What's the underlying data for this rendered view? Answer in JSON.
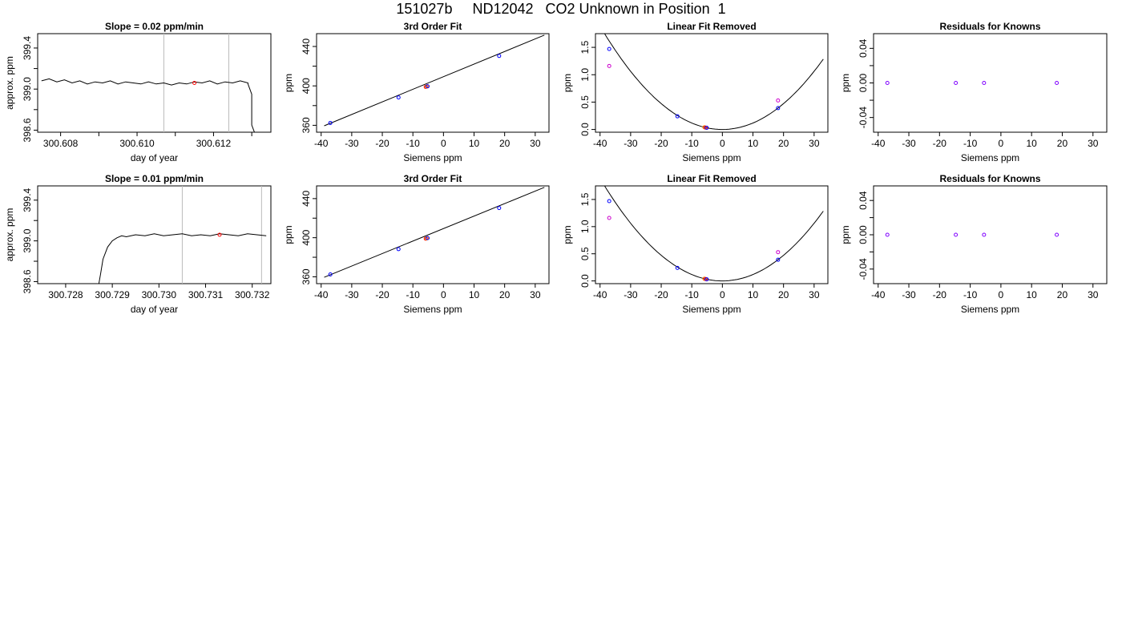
{
  "page": {
    "title": "151027b     ND12042   CO2 Unknown in Position  1"
  },
  "chart_data": [
    {
      "type": "line",
      "title": "Slope =  0.02  ppm/min",
      "xlabel": "day of year",
      "ylabel": "approx. ppm",
      "xlim": [
        300.6074,
        300.6135
      ],
      "ylim": [
        398.58,
        399.54
      ],
      "xticks": [
        300.608,
        300.609,
        300.61,
        300.611,
        300.612,
        300.613
      ],
      "xtick_labels": [
        "300.608",
        "",
        "300.610",
        "",
        "300.612",
        ""
      ],
      "yticks": [
        398.6,
        398.8,
        399.0,
        399.2,
        399.4
      ],
      "ytick_labels": [
        "398.6",
        "",
        "399.0",
        "",
        "399.4"
      ],
      "x": [
        300.6075,
        300.6077,
        300.6079,
        300.6081,
        300.6083,
        300.6085,
        300.6087,
        300.6089,
        300.6091,
        300.6093,
        300.6095,
        300.6097,
        300.6099,
        300.6101,
        300.6103,
        300.6105,
        300.6107,
        300.6109,
        300.6111,
        300.6113,
        300.6115,
        300.6117,
        300.6119,
        300.6121,
        300.6123,
        300.6125,
        300.6127,
        300.6129,
        300.6129,
        300.613,
        300.613,
        300.613,
        300.6131
      ],
      "y": [
        399.08,
        399.1,
        399.07,
        399.09,
        399.06,
        399.08,
        399.05,
        399.07,
        399.06,
        399.08,
        399.05,
        399.07,
        399.06,
        399.05,
        399.07,
        399.05,
        399.06,
        399.04,
        399.06,
        399.05,
        399.07,
        399.06,
        399.08,
        399.05,
        399.07,
        399.06,
        399.08,
        399.06,
        399.05,
        398.95,
        398.8,
        398.65,
        398.55
      ],
      "vlines": [
        300.6107,
        300.6124
      ],
      "points": [
        {
          "x": 300.6115,
          "y": 399.06,
          "color": "#ff0000"
        }
      ]
    },
    {
      "type": "scatter",
      "title": "3rd Order Fit",
      "xlabel": "Siemens ppm",
      "ylabel": "ppm",
      "xlim": [
        -41.5,
        34.5
      ],
      "ylim": [
        353,
        453
      ],
      "xticks": [
        -40,
        -30,
        -20,
        -10,
        0,
        10,
        20,
        30
      ],
      "xtick_labels": [
        "-40",
        "-30",
        "-20",
        "-10",
        "0",
        "10",
        "20",
        "30"
      ],
      "yticks": [
        360,
        380,
        400,
        420,
        440
      ],
      "ytick_labels": [
        "360",
        "",
        "400",
        "",
        "440"
      ],
      "fit_line": [
        [
          -39,
          359.5
        ],
        [
          33,
          451.5
        ]
      ],
      "points": [
        {
          "x": -37,
          "y": 362.4,
          "color": "#0000ff"
        },
        {
          "x": -14.7,
          "y": 388.3,
          "color": "#0000ff"
        },
        {
          "x": -5.8,
          "y": 399.0,
          "color": "#ff0000"
        },
        {
          "x": -5.5,
          "y": 399.3,
          "color": "#ff8000"
        },
        {
          "x": -5.2,
          "y": 399.6,
          "color": "#0000ff"
        },
        {
          "x": 18.2,
          "y": 430.4,
          "color": "#0000ff"
        }
      ]
    },
    {
      "type": "scatter",
      "title": "Linear Fit Removed",
      "xlabel": "Siemens ppm",
      "ylabel": "ppm",
      "xlim": [
        -41.5,
        34.5
      ],
      "ylim": [
        -0.05,
        1.75
      ],
      "xticks": [
        -40,
        -30,
        -20,
        -10,
        0,
        10,
        20,
        30
      ],
      "xtick_labels": [
        "-40",
        "-30",
        "-20",
        "-10",
        "0",
        "10",
        "20",
        "30"
      ],
      "yticks": [
        0.0,
        0.5,
        1.0,
        1.5
      ],
      "ytick_labels": [
        "0.0",
        "0.5",
        "1.0",
        "1.5"
      ],
      "curve_coeff": 0.00118,
      "curve_x": [
        -39.5,
        33
      ],
      "points": [
        {
          "x": -37,
          "y": 1.47,
          "color": "#0000ff"
        },
        {
          "x": -37,
          "y": 1.16,
          "color": "#cc00cc"
        },
        {
          "x": -14.7,
          "y": 0.24,
          "color": "#0000ff"
        },
        {
          "x": -5.9,
          "y": 0.04,
          "color": "#ff8000"
        },
        {
          "x": -5.5,
          "y": 0.035,
          "color": "#ff0000"
        },
        {
          "x": -5.1,
          "y": 0.03,
          "color": "#0000ff"
        },
        {
          "x": 18.2,
          "y": 0.39,
          "color": "#0000ff"
        },
        {
          "x": 18.2,
          "y": 0.53,
          "color": "#cc00cc"
        }
      ]
    },
    {
      "type": "scatter",
      "title": "Residuals for Knowns",
      "xlabel": "Siemens ppm",
      "ylabel": "ppm",
      "xlim": [
        -41.5,
        34.5
      ],
      "ylim": [
        -0.057,
        0.057
      ],
      "xticks": [
        -40,
        -30,
        -20,
        -10,
        0,
        10,
        20,
        30
      ],
      "xtick_labels": [
        "-40",
        "-30",
        "-20",
        "-10",
        "0",
        "10",
        "20",
        "30"
      ],
      "yticks": [
        -0.04,
        -0.02,
        0.0,
        0.02,
        0.04
      ],
      "ytick_labels": [
        "-0.04",
        "",
        "0.00",
        "",
        "0.04"
      ],
      "points": [
        {
          "x": -37,
          "y": 0.0,
          "color": "#8000ff"
        },
        {
          "x": -14.7,
          "y": 0.0,
          "color": "#8000ff"
        },
        {
          "x": -5.5,
          "y": 0.0,
          "color": "#8000ff"
        },
        {
          "x": 18.2,
          "y": 0.0,
          "color": "#8000ff"
        }
      ]
    },
    {
      "type": "line",
      "title": "Slope =  0.01  ppm/min",
      "xlabel": "day of year",
      "ylabel": "approx. ppm",
      "xlim": [
        300.7274,
        300.7324
      ],
      "ylim": [
        398.58,
        399.54
      ],
      "xticks": [
        300.728,
        300.729,
        300.73,
        300.731,
        300.732
      ],
      "xtick_labels": [
        "300.728",
        "300.729",
        "300.730",
        "300.731",
        "300.732"
      ],
      "yticks": [
        398.6,
        398.8,
        399.0,
        399.2,
        399.4
      ],
      "ytick_labels": [
        "398.6",
        "",
        "399.0",
        "",
        "399.4"
      ],
      "x": [
        300.7287,
        300.72875,
        300.7288,
        300.7289,
        300.729,
        300.7291,
        300.7292,
        300.7293,
        300.7295,
        300.7297,
        300.7299,
        300.7301,
        300.7303,
        300.7305,
        300.7307,
        300.7309,
        300.7311,
        300.7313,
        300.7315,
        300.7317,
        300.7319,
        300.7321,
        300.7323
      ],
      "y": [
        398.55,
        398.68,
        398.82,
        398.94,
        399.0,
        399.03,
        399.05,
        399.04,
        399.06,
        399.05,
        399.07,
        399.05,
        399.06,
        399.07,
        399.05,
        399.06,
        399.05,
        399.07,
        399.06,
        399.05,
        399.07,
        399.06,
        399.05
      ],
      "vlines": [
        300.7305,
        300.7322
      ],
      "points": [
        {
          "x": 300.7313,
          "y": 399.06,
          "color": "#ff0000"
        }
      ]
    },
    {
      "type": "scatter",
      "title": "3rd Order Fit",
      "xlabel": "Siemens ppm",
      "ylabel": "ppm",
      "xlim": [
        -41.5,
        34.5
      ],
      "ylim": [
        353,
        453
      ],
      "xticks": [
        -40,
        -30,
        -20,
        -10,
        0,
        10,
        20,
        30
      ],
      "xtick_labels": [
        "-40",
        "-30",
        "-20",
        "-10",
        "0",
        "10",
        "20",
        "30"
      ],
      "yticks": [
        360,
        380,
        400,
        420,
        440
      ],
      "ytick_labels": [
        "360",
        "",
        "400",
        "",
        "440"
      ],
      "fit_line": [
        [
          -39,
          359.5
        ],
        [
          33,
          451.5
        ]
      ],
      "points": [
        {
          "x": -37,
          "y": 362.4,
          "color": "#0000ff"
        },
        {
          "x": -14.7,
          "y": 388.3,
          "color": "#0000ff"
        },
        {
          "x": -5.8,
          "y": 399.0,
          "color": "#ff0000"
        },
        {
          "x": -5.5,
          "y": 399.3,
          "color": "#ff8000"
        },
        {
          "x": -5.2,
          "y": 399.6,
          "color": "#0000ff"
        },
        {
          "x": 18.2,
          "y": 430.4,
          "color": "#0000ff"
        }
      ]
    },
    {
      "type": "scatter",
      "title": "Linear Fit Removed",
      "xlabel": "Siemens ppm",
      "ylabel": "ppm",
      "xlim": [
        -41.5,
        34.5
      ],
      "ylim": [
        -0.05,
        1.75
      ],
      "xticks": [
        -40,
        -30,
        -20,
        -10,
        0,
        10,
        20,
        30
      ],
      "xtick_labels": [
        "-40",
        "-30",
        "-20",
        "-10",
        "0",
        "10",
        "20",
        "30"
      ],
      "yticks": [
        0.0,
        0.5,
        1.0,
        1.5
      ],
      "ytick_labels": [
        "0.0",
        "0.5",
        "1.0",
        "1.5"
      ],
      "curve_coeff": 0.00118,
      "curve_x": [
        -39.5,
        33
      ],
      "points": [
        {
          "x": -37,
          "y": 1.47,
          "color": "#0000ff"
        },
        {
          "x": -37,
          "y": 1.16,
          "color": "#cc00cc"
        },
        {
          "x": -14.7,
          "y": 0.24,
          "color": "#0000ff"
        },
        {
          "x": -5.9,
          "y": 0.04,
          "color": "#ff8000"
        },
        {
          "x": -5.5,
          "y": 0.035,
          "color": "#ff0000"
        },
        {
          "x": -5.1,
          "y": 0.03,
          "color": "#0000ff"
        },
        {
          "x": 18.2,
          "y": 0.39,
          "color": "#0000ff"
        },
        {
          "x": 18.2,
          "y": 0.53,
          "color": "#cc00cc"
        }
      ]
    },
    {
      "type": "scatter",
      "title": "Residuals for Knowns",
      "xlabel": "Siemens ppm",
      "ylabel": "ppm",
      "xlim": [
        -41.5,
        34.5
      ],
      "ylim": [
        -0.057,
        0.057
      ],
      "xticks": [
        -40,
        -30,
        -20,
        -10,
        0,
        10,
        20,
        30
      ],
      "xtick_labels": [
        "-40",
        "-30",
        "-20",
        "-10",
        "0",
        "10",
        "20",
        "30"
      ],
      "yticks": [
        -0.04,
        -0.02,
        0.0,
        0.02,
        0.04
      ],
      "ytick_labels": [
        "-0.04",
        "",
        "0.00",
        "",
        "0.04"
      ],
      "points": [
        {
          "x": -37,
          "y": 0.0,
          "color": "#8000ff"
        },
        {
          "x": -14.7,
          "y": 0.0,
          "color": "#8000ff"
        },
        {
          "x": -5.5,
          "y": 0.0,
          "color": "#8000ff"
        },
        {
          "x": 18.2,
          "y": 0.0,
          "color": "#8000ff"
        }
      ]
    }
  ]
}
